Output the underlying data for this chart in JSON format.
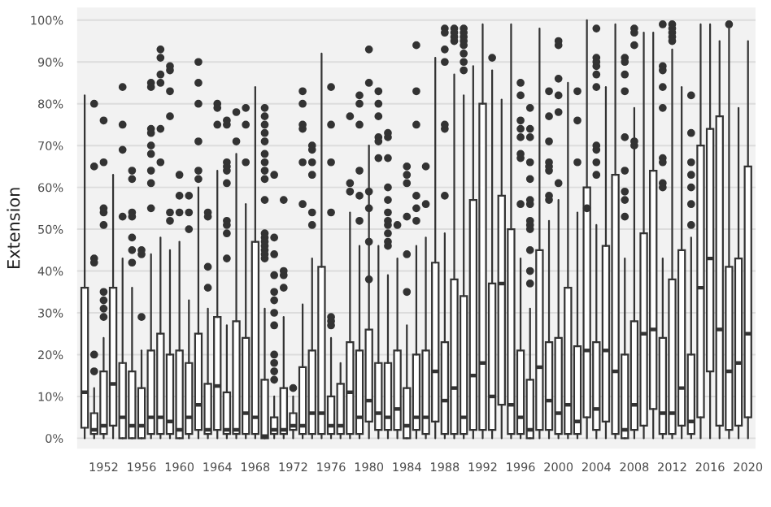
{
  "chart_data": {
    "type": "box",
    "ylabel": "Extension",
    "categories": [
      null,
      null,
      "1952",
      null,
      null,
      null,
      "1956",
      null,
      null,
      null,
      "1960",
      null,
      null,
      null,
      "1964",
      null,
      null,
      null,
      "1968",
      null,
      null,
      null,
      "1972",
      null,
      null,
      null,
      "1976",
      null,
      null,
      null,
      "1980",
      null,
      null,
      null,
      "1984",
      null,
      null,
      null,
      "1988",
      null,
      null,
      null,
      "1992",
      null,
      null,
      null,
      "1996",
      null,
      null,
      null,
      "2000",
      null,
      null,
      null,
      "2004",
      null,
      null,
      null,
      "2008",
      null,
      null,
      null,
      "2012",
      null,
      null,
      null,
      "2016",
      null,
      null,
      null,
      "2020"
    ],
    "boxes": [
      {
        "low": 0,
        "q1": 2.5,
        "median": 11,
        "q3": 36,
        "high": 82
      },
      {
        "low": 0,
        "q1": 1,
        "median": 2,
        "q3": 6,
        "high": 12,
        "outliers": [
          80,
          65,
          43,
          42,
          20,
          16
        ]
      },
      {
        "low": 0,
        "q1": 1,
        "median": 3,
        "q3": 16,
        "high": 24,
        "outliers": [
          76,
          66,
          55,
          54,
          51,
          35,
          33,
          31,
          29
        ]
      },
      {
        "low": 0,
        "q1": 3,
        "median": 13,
        "q3": 36,
        "high": 63
      },
      {
        "low": 0,
        "q1": 0,
        "median": 5,
        "q3": 18,
        "high": 43,
        "outliers": [
          84,
          75,
          69,
          53
        ]
      },
      {
        "low": 0,
        "q1": 0,
        "median": 3,
        "q3": 16,
        "high": 36,
        "outliers": [
          64,
          62,
          54,
          53,
          48,
          45,
          42
        ]
      },
      {
        "low": 0,
        "q1": 0,
        "median": 3,
        "q3": 12,
        "high": 21,
        "outliers": [
          45,
          44,
          29
        ]
      },
      {
        "low": 0,
        "q1": 1,
        "median": 5,
        "q3": 21,
        "high": 44,
        "outliers": [
          85,
          84,
          74,
          73,
          70,
          68,
          64,
          61,
          55
        ]
      },
      {
        "low": 0,
        "q1": 1,
        "median": 5,
        "q3": 25,
        "high": 48,
        "outliers": [
          93,
          91,
          87,
          85,
          74,
          66
        ]
      },
      {
        "low": 0,
        "q1": 1,
        "median": 4,
        "q3": 20,
        "high": 45,
        "outliers": [
          89,
          88,
          83,
          77,
          54,
          52
        ]
      },
      {
        "low": 0,
        "q1": 0,
        "median": 2,
        "q3": 21,
        "high": 47,
        "outliers": [
          63,
          58,
          54
        ]
      },
      {
        "low": 0,
        "q1": 1,
        "median": 5,
        "q3": 18,
        "high": 33,
        "outliers": [
          58,
          54,
          50
        ]
      },
      {
        "low": 0,
        "q1": 2,
        "median": 8,
        "q3": 25,
        "high": 60,
        "outliers": [
          90,
          85,
          80,
          71,
          64,
          62
        ]
      },
      {
        "low": 0,
        "q1": 1,
        "median": 2,
        "q3": 13,
        "high": 31,
        "outliers": [
          54,
          53,
          41,
          36
        ]
      },
      {
        "low": 0,
        "q1": 2,
        "median": 12.5,
        "q3": 29,
        "high": 64,
        "outliers": [
          80,
          79,
          75
        ]
      },
      {
        "low": 0,
        "q1": 1,
        "median": 2,
        "q3": 11,
        "high": 27,
        "outliers": [
          76,
          75,
          66,
          65,
          64,
          61,
          52,
          51,
          49,
          43
        ]
      },
      {
        "low": 0,
        "q1": 1,
        "median": 2,
        "q3": 28,
        "high": 68,
        "outliers": [
          78,
          71
        ]
      },
      {
        "low": 0,
        "q1": 1,
        "median": 6,
        "q3": 24,
        "high": 56,
        "outliers": [
          79,
          75,
          66
        ]
      },
      {
        "low": 0,
        "q1": 1,
        "median": 5,
        "q3": 47,
        "high": 84
      },
      {
        "low": 0,
        "q1": 0,
        "median": 0.5,
        "q3": 14,
        "high": 31,
        "outliers": [
          79,
          77,
          75,
          73,
          71,
          68,
          66,
          64,
          62,
          57,
          49,
          48,
          47,
          46,
          45,
          44,
          43
        ]
      },
      {
        "low": 0,
        "q1": 1,
        "median": 2,
        "q3": 5,
        "high": 10,
        "outliers": [
          63,
          48,
          44,
          39,
          35,
          33,
          30,
          27,
          20,
          18,
          16,
          14
        ]
      },
      {
        "low": 0,
        "q1": 1,
        "median": 2,
        "q3": 12,
        "high": 29,
        "outliers": [
          57,
          40,
          39,
          36
        ]
      },
      {
        "low": 0,
        "q1": 2,
        "median": 3,
        "q3": 6,
        "high": 10,
        "outliers": [
          12
        ]
      },
      {
        "low": 0,
        "q1": 1,
        "median": 3,
        "q3": 17,
        "high": 32,
        "outliers": [
          83,
          80,
          75,
          74,
          66,
          56
        ]
      },
      {
        "low": 0,
        "q1": 1,
        "median": 6,
        "q3": 21,
        "high": 43,
        "outliers": [
          70,
          69,
          66,
          63,
          54,
          51
        ]
      },
      {
        "low": 0,
        "q1": 1,
        "median": 6,
        "q3": 41,
        "high": 92
      },
      {
        "low": 0,
        "q1": 1,
        "median": 3,
        "q3": 10,
        "high": 24,
        "outliers": [
          84,
          75,
          66,
          54,
          29,
          28,
          27
        ]
      },
      {
        "low": 0,
        "q1": 1,
        "median": 3,
        "q3": 13,
        "high": 18
      },
      {
        "low": 0,
        "q1": 1,
        "median": 11,
        "q3": 23,
        "high": 54,
        "outliers": [
          77,
          61,
          59
        ]
      },
      {
        "low": 0,
        "q1": 1,
        "median": 5,
        "q3": 21,
        "high": 46,
        "outliers": [
          82,
          80,
          75,
          64,
          58,
          52
        ]
      },
      {
        "low": 0,
        "q1": 4,
        "median": 9,
        "q3": 26,
        "high": 70,
        "outliers": [
          93,
          85,
          59,
          55,
          47,
          38
        ]
      },
      {
        "low": 0,
        "q1": 2,
        "median": 6,
        "q3": 18,
        "high": 46,
        "outliers": [
          83,
          80,
          77,
          72,
          71,
          67
        ]
      },
      {
        "low": 0,
        "q1": 2,
        "median": 5,
        "q3": 18,
        "high": 39,
        "outliers": [
          73,
          72,
          67,
          60,
          57,
          54,
          52,
          51,
          49,
          47,
          46
        ]
      },
      {
        "low": 0,
        "q1": 2,
        "median": 7,
        "q3": 21,
        "high": 43,
        "outliers": [
          51
        ]
      },
      {
        "low": 0,
        "q1": 0,
        "median": 3,
        "q3": 12,
        "high": 27,
        "outliers": [
          65,
          63,
          61,
          53,
          44,
          35
        ]
      },
      {
        "low": 0,
        "q1": 2,
        "median": 5,
        "q3": 20,
        "high": 46,
        "outliers": [
          94,
          83,
          75,
          58,
          55,
          52
        ]
      },
      {
        "low": 0,
        "q1": 1,
        "median": 5,
        "q3": 21,
        "high": 48,
        "outliers": [
          65,
          56
        ]
      },
      {
        "low": 0,
        "q1": 4,
        "median": 16,
        "q3": 42,
        "high": 91
      },
      {
        "low": 0,
        "q1": 1,
        "median": 9,
        "q3": 23,
        "high": 49,
        "outliers": [
          98,
          97,
          93,
          90,
          75,
          74,
          58
        ]
      },
      {
        "low": 0,
        "q1": 1,
        "median": 12,
        "q3": 38,
        "high": 87,
        "outliers": [
          98,
          97,
          96,
          95
        ]
      },
      {
        "low": 0,
        "q1": 1,
        "median": 5,
        "q3": 34,
        "high": 82,
        "outliers": [
          98,
          97,
          96,
          95,
          94,
          92,
          90,
          88
        ]
      },
      {
        "low": 0,
        "q1": 2,
        "median": 15,
        "q3": 57,
        "high": 89
      },
      {
        "low": 0,
        "q1": 2,
        "median": 18,
        "q3": 80,
        "high": 99
      },
      {
        "low": 0,
        "q1": 2,
        "median": 10,
        "q3": 37,
        "high": 88,
        "outliers": [
          91
        ]
      },
      {
        "low": 0,
        "q1": 8,
        "median": 37,
        "q3": 58,
        "high": 81
      },
      {
        "low": 0,
        "q1": 1,
        "median": 8,
        "q3": 50,
        "high": 99
      },
      {
        "low": 0,
        "q1": 1,
        "median": 5,
        "q3": 21,
        "high": 43,
        "outliers": [
          85,
          82,
          76,
          74,
          72,
          68,
          67,
          56
        ]
      },
      {
        "low": 0,
        "q1": 0,
        "median": 2,
        "q3": 14,
        "high": 31,
        "outliers": [
          79,
          74,
          72,
          66,
          62,
          57,
          56,
          52,
          51,
          50,
          45,
          40,
          37
        ]
      },
      {
        "low": 0,
        "q1": 2,
        "median": 17,
        "q3": 45,
        "high": 98
      },
      {
        "low": 0,
        "q1": 2,
        "median": 9,
        "q3": 23,
        "high": 52,
        "outliers": [
          83,
          77,
          71,
          66,
          65,
          64,
          58,
          57
        ]
      },
      {
        "low": 0,
        "q1": 1,
        "median": 6,
        "q3": 24,
        "high": 57,
        "outliers": [
          95,
          94,
          86,
          82,
          78,
          61
        ]
      },
      {
        "low": 0,
        "q1": 1,
        "median": 8,
        "q3": 36,
        "high": 85
      },
      {
        "low": 0,
        "q1": 1,
        "median": 4,
        "q3": 22,
        "high": 54,
        "outliers": [
          83,
          76,
          66
        ]
      },
      {
        "low": 0,
        "q1": 5,
        "median": 21,
        "q3": 60,
        "high": 100,
        "outliers": [
          55
        ]
      },
      {
        "low": 0,
        "q1": 2,
        "median": 7,
        "q3": 23,
        "high": 51,
        "outliers": [
          98,
          91,
          90,
          89,
          87,
          84,
          70,
          69,
          66,
          63
        ]
      },
      {
        "low": 0,
        "q1": 4,
        "median": 21,
        "q3": 46,
        "high": 84
      },
      {
        "low": 0,
        "q1": 1,
        "median": 16,
        "q3": 63,
        "high": 99
      },
      {
        "low": 0,
        "q1": 0,
        "median": 2,
        "q3": 20,
        "high": 43,
        "outliers": [
          91,
          90,
          87,
          83,
          72,
          64,
          59,
          57,
          53
        ]
      },
      {
        "low": 0,
        "q1": 2,
        "median": 8,
        "q3": 28,
        "high": 79,
        "outliers": [
          98,
          97,
          94,
          71,
          70
        ]
      },
      {
        "low": 0,
        "q1": 3,
        "median": 25,
        "q3": 49,
        "high": 97
      },
      {
        "low": 0,
        "q1": 7,
        "median": 26,
        "q3": 64,
        "high": 97
      },
      {
        "low": 0,
        "q1": 1,
        "median": 6,
        "q3": 24,
        "high": 43,
        "outliers": [
          99,
          89,
          88,
          84,
          79,
          67,
          66,
          61,
          60
        ]
      },
      {
        "low": 0,
        "q1": 1,
        "median": 6,
        "q3": 38,
        "high": 93,
        "outliers": [
          99,
          98,
          97,
          96,
          95
        ]
      },
      {
        "low": 0,
        "q1": 3,
        "median": 12,
        "q3": 45,
        "high": 84
      },
      {
        "low": 0,
        "q1": 1,
        "median": 4,
        "q3": 20,
        "high": 48,
        "outliers": [
          82,
          73,
          66,
          63,
          60,
          56,
          51
        ]
      },
      {
        "low": 0,
        "q1": 5,
        "median": 36,
        "q3": 70,
        "high": 99
      },
      {
        "low": 0,
        "q1": 16,
        "median": 43,
        "q3": 74,
        "high": 99
      },
      {
        "low": 0,
        "q1": 3,
        "median": 26,
        "q3": 77,
        "high": 95
      },
      {
        "low": 0,
        "q1": 2,
        "median": 16,
        "q3": 41,
        "high": 98,
        "outliers": [
          99
        ]
      },
      {
        "low": 0,
        "q1": 3,
        "median": 18,
        "q3": 43,
        "high": 79
      },
      {
        "low": 0,
        "q1": 5,
        "median": 25,
        "q3": 65,
        "high": 95
      }
    ],
    "ylim": [
      -2.5,
      103
    ],
    "yticks": [
      {
        "value": 0,
        "label": "0%"
      },
      {
        "value": 10,
        "label": "10%"
      },
      {
        "value": 20,
        "label": "20%"
      },
      {
        "value": 30,
        "label": "30%"
      },
      {
        "value": 40,
        "label": "40%"
      },
      {
        "value": 50,
        "label": "50%"
      },
      {
        "value": 60,
        "label": "60%"
      },
      {
        "value": 70,
        "label": "70%"
      },
      {
        "value": 80,
        "label": "80%"
      },
      {
        "value": 90,
        "label": "90%"
      },
      {
        "value": 100,
        "label": "100%"
      }
    ],
    "grid": "y",
    "marker": "circle",
    "color": "#333333"
  }
}
